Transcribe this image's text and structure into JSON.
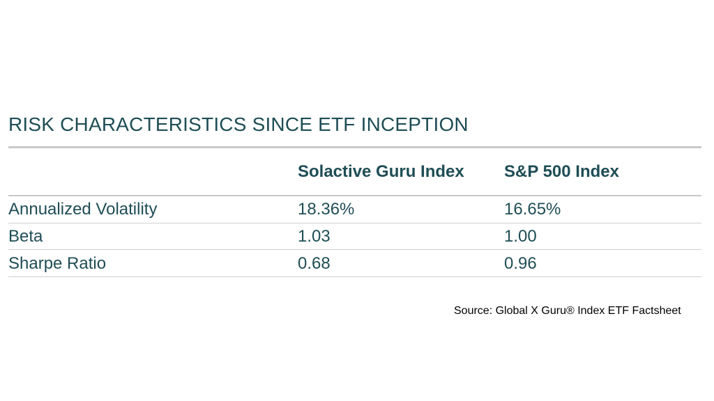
{
  "title": "RISK CHARACTERISTICS SINCE ETF INCEPTION",
  "table": {
    "headers": [
      "",
      "Solactive Guru Index",
      "S&P 500 Index"
    ],
    "rows": [
      {
        "label": "Annualized Volatility",
        "guru": "18.36%",
        "sp500": "16.65%"
      },
      {
        "label": "Beta",
        "guru": "1.03",
        "sp500": "1.00"
      },
      {
        "label": "Sharpe Ratio",
        "guru": "0.68",
        "sp500": "0.96"
      }
    ]
  },
  "source": "Source: Global X Guru® Index ETF Factsheet",
  "colors": {
    "text": "#1f4d55",
    "rule": "#c8c8c8"
  }
}
